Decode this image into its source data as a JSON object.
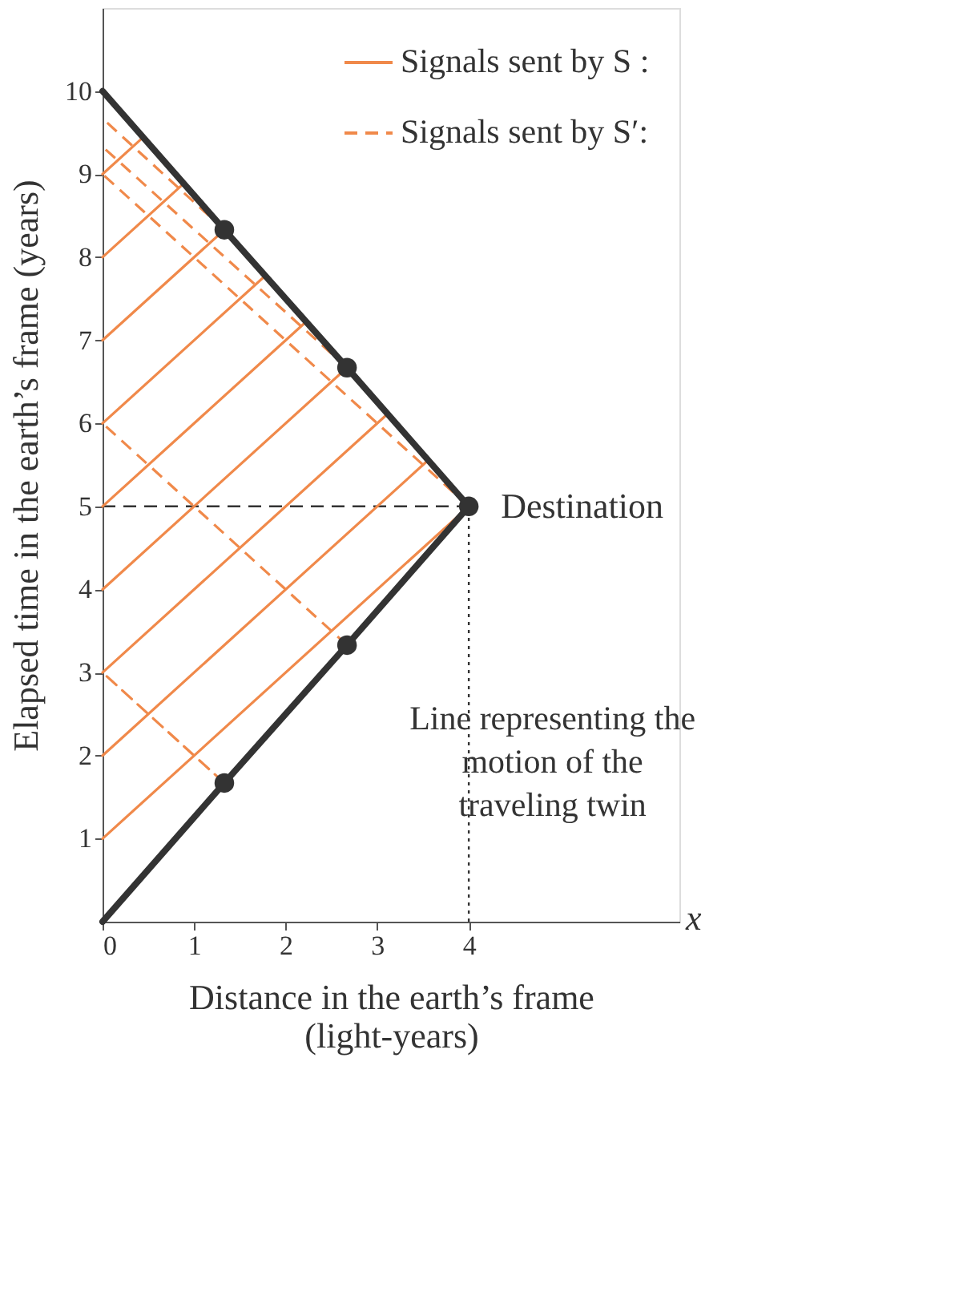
{
  "chart_data": {
    "type": "line",
    "xlabel": "Distance in the earth’s frame\n(light-years)",
    "ylabel": "Elapsed time in the earth’s frame (years)",
    "xlim": [
      0,
      6.3
    ],
    "ylim": [
      0,
      11
    ],
    "xticks": [
      0,
      1,
      2,
      3,
      4
    ],
    "yticks": [
      1,
      2,
      3,
      4,
      5,
      6,
      7,
      8,
      9,
      10
    ],
    "grid": false,
    "legend": "top right",
    "series": [
      {
        "color": "#333333",
        "line_style": "dashed",
        "x": [
          0,
          4
        ],
        "values": [
          5,
          5
        ]
      },
      {
        "color": "#333333",
        "line_style": "dotted",
        "x": [
          4,
          4
        ],
        "values": [
          0,
          5
        ]
      },
      {
        "name": "Signals sent by S :",
        "color": "#f0894a",
        "line_style": "solid",
        "x": [
          0,
          4,
          null,
          0,
          3.56,
          null,
          0,
          3.11,
          null,
          0,
          2.67,
          null,
          0,
          2.22,
          null,
          0,
          1.78,
          null,
          0,
          1.33,
          null,
          0,
          0.89,
          null,
          0,
          0.44
        ],
        "values": [
          1,
          5,
          null,
          2,
          5.56,
          null,
          3,
          6.11,
          null,
          4,
          6.67,
          null,
          5,
          7.22,
          null,
          6,
          7.78,
          null,
          7,
          8.33,
          null,
          8,
          8.89,
          null,
          9,
          9.44
        ]
      },
      {
        "name": "Signals sent by S′:",
        "color": "#f0894a",
        "line_style": "dashed",
        "x": [
          1.33,
          0
        ],
        "values": [
          1.67,
          3
        ]
      },
      {
        "color": "#f0894a",
        "line_style": "dashed",
        "x": [
          2.67,
          0
        ],
        "values": [
          3.33,
          6
        ]
      },
      {
        "color": "#f0894a",
        "line_style": "dashed",
        "x": [
          4,
          0
        ],
        "values": [
          5,
          9
        ]
      },
      {
        "color": "#f0894a",
        "line_style": "dashed",
        "x": [
          2.67,
          0
        ],
        "values": [
          6.67,
          9.33
        ]
      },
      {
        "color": "#f0894a",
        "line_style": "dashed",
        "x": [
          1.33,
          0
        ],
        "values": [
          8.33,
          9.67
        ]
      },
      {
        "color": "#333333",
        "line_style": "solid",
        "x": [
          0,
          1.33,
          2.67,
          4,
          2.67,
          1.33,
          0
        ],
        "values": [
          0,
          1.67,
          3.33,
          5,
          6.67,
          8.33,
          10
        ]
      },
      {
        "type": "scatter",
        "color": "#333333",
        "marker": "circle",
        "x": [
          1.33,
          2.67,
          4,
          2.67,
          1.33
        ],
        "values": [
          1.67,
          3.33,
          5,
          6.67,
          8.33
        ]
      }
    ],
    "annotations": [
      "x",
      {
        "text": "Destination",
        "x": 4,
        "y": 5
      },
      "Line representing the\nmotion of the\ntraveling twin"
    ]
  }
}
